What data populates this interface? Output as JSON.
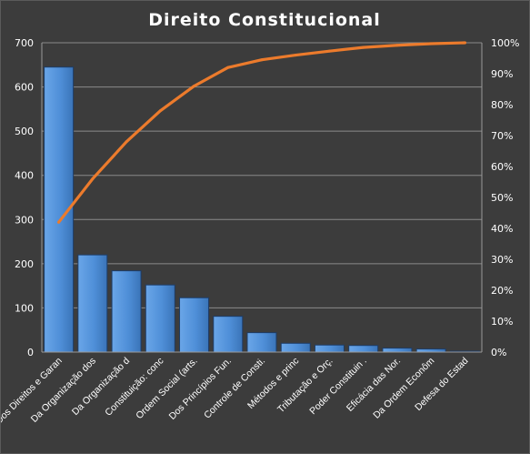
{
  "chart_data": {
    "type": "bar",
    "title": "Direito  Constitucional",
    "categories": [
      "Dos Direitos e Garan",
      "Da Organização dos",
      "Da Organização d",
      "Constituição: conc",
      "Ordem Social (arts.",
      "Dos Princípios Fun.",
      "Controle de Consti.",
      "Métodos e princ",
      "Tributação e Orç.",
      "Poder Constituin .",
      "Eficácia das Nor.",
      "Da Ordem Econôm",
      "Defesa do Estad"
    ],
    "series": [
      {
        "type": "bar",
        "axis": "left",
        "color": "#4f8fd8",
        "values": [
          645,
          220,
          184,
          152,
          123,
          81,
          44,
          20,
          16,
          15,
          9,
          7,
          2
        ]
      },
      {
        "type": "line",
        "axis": "right",
        "color": "#ec7b2c",
        "values": [
          42,
          56,
          68,
          78,
          86,
          92,
          94.5,
          96,
          97.3,
          98.5,
          99.2,
          99.7,
          100
        ]
      }
    ],
    "ylim": [
      0,
      700
    ],
    "yticks": [
      "0",
      "100",
      "200",
      "300",
      "400",
      "500",
      "600",
      "700"
    ],
    "y2lim": [
      0,
      100
    ],
    "y2ticks": [
      "0%",
      "10%",
      "20%",
      "30%",
      "40%",
      "50%",
      "60%",
      "70%",
      "80%",
      "90%",
      "100%"
    ],
    "grid": true,
    "legend": "none"
  }
}
